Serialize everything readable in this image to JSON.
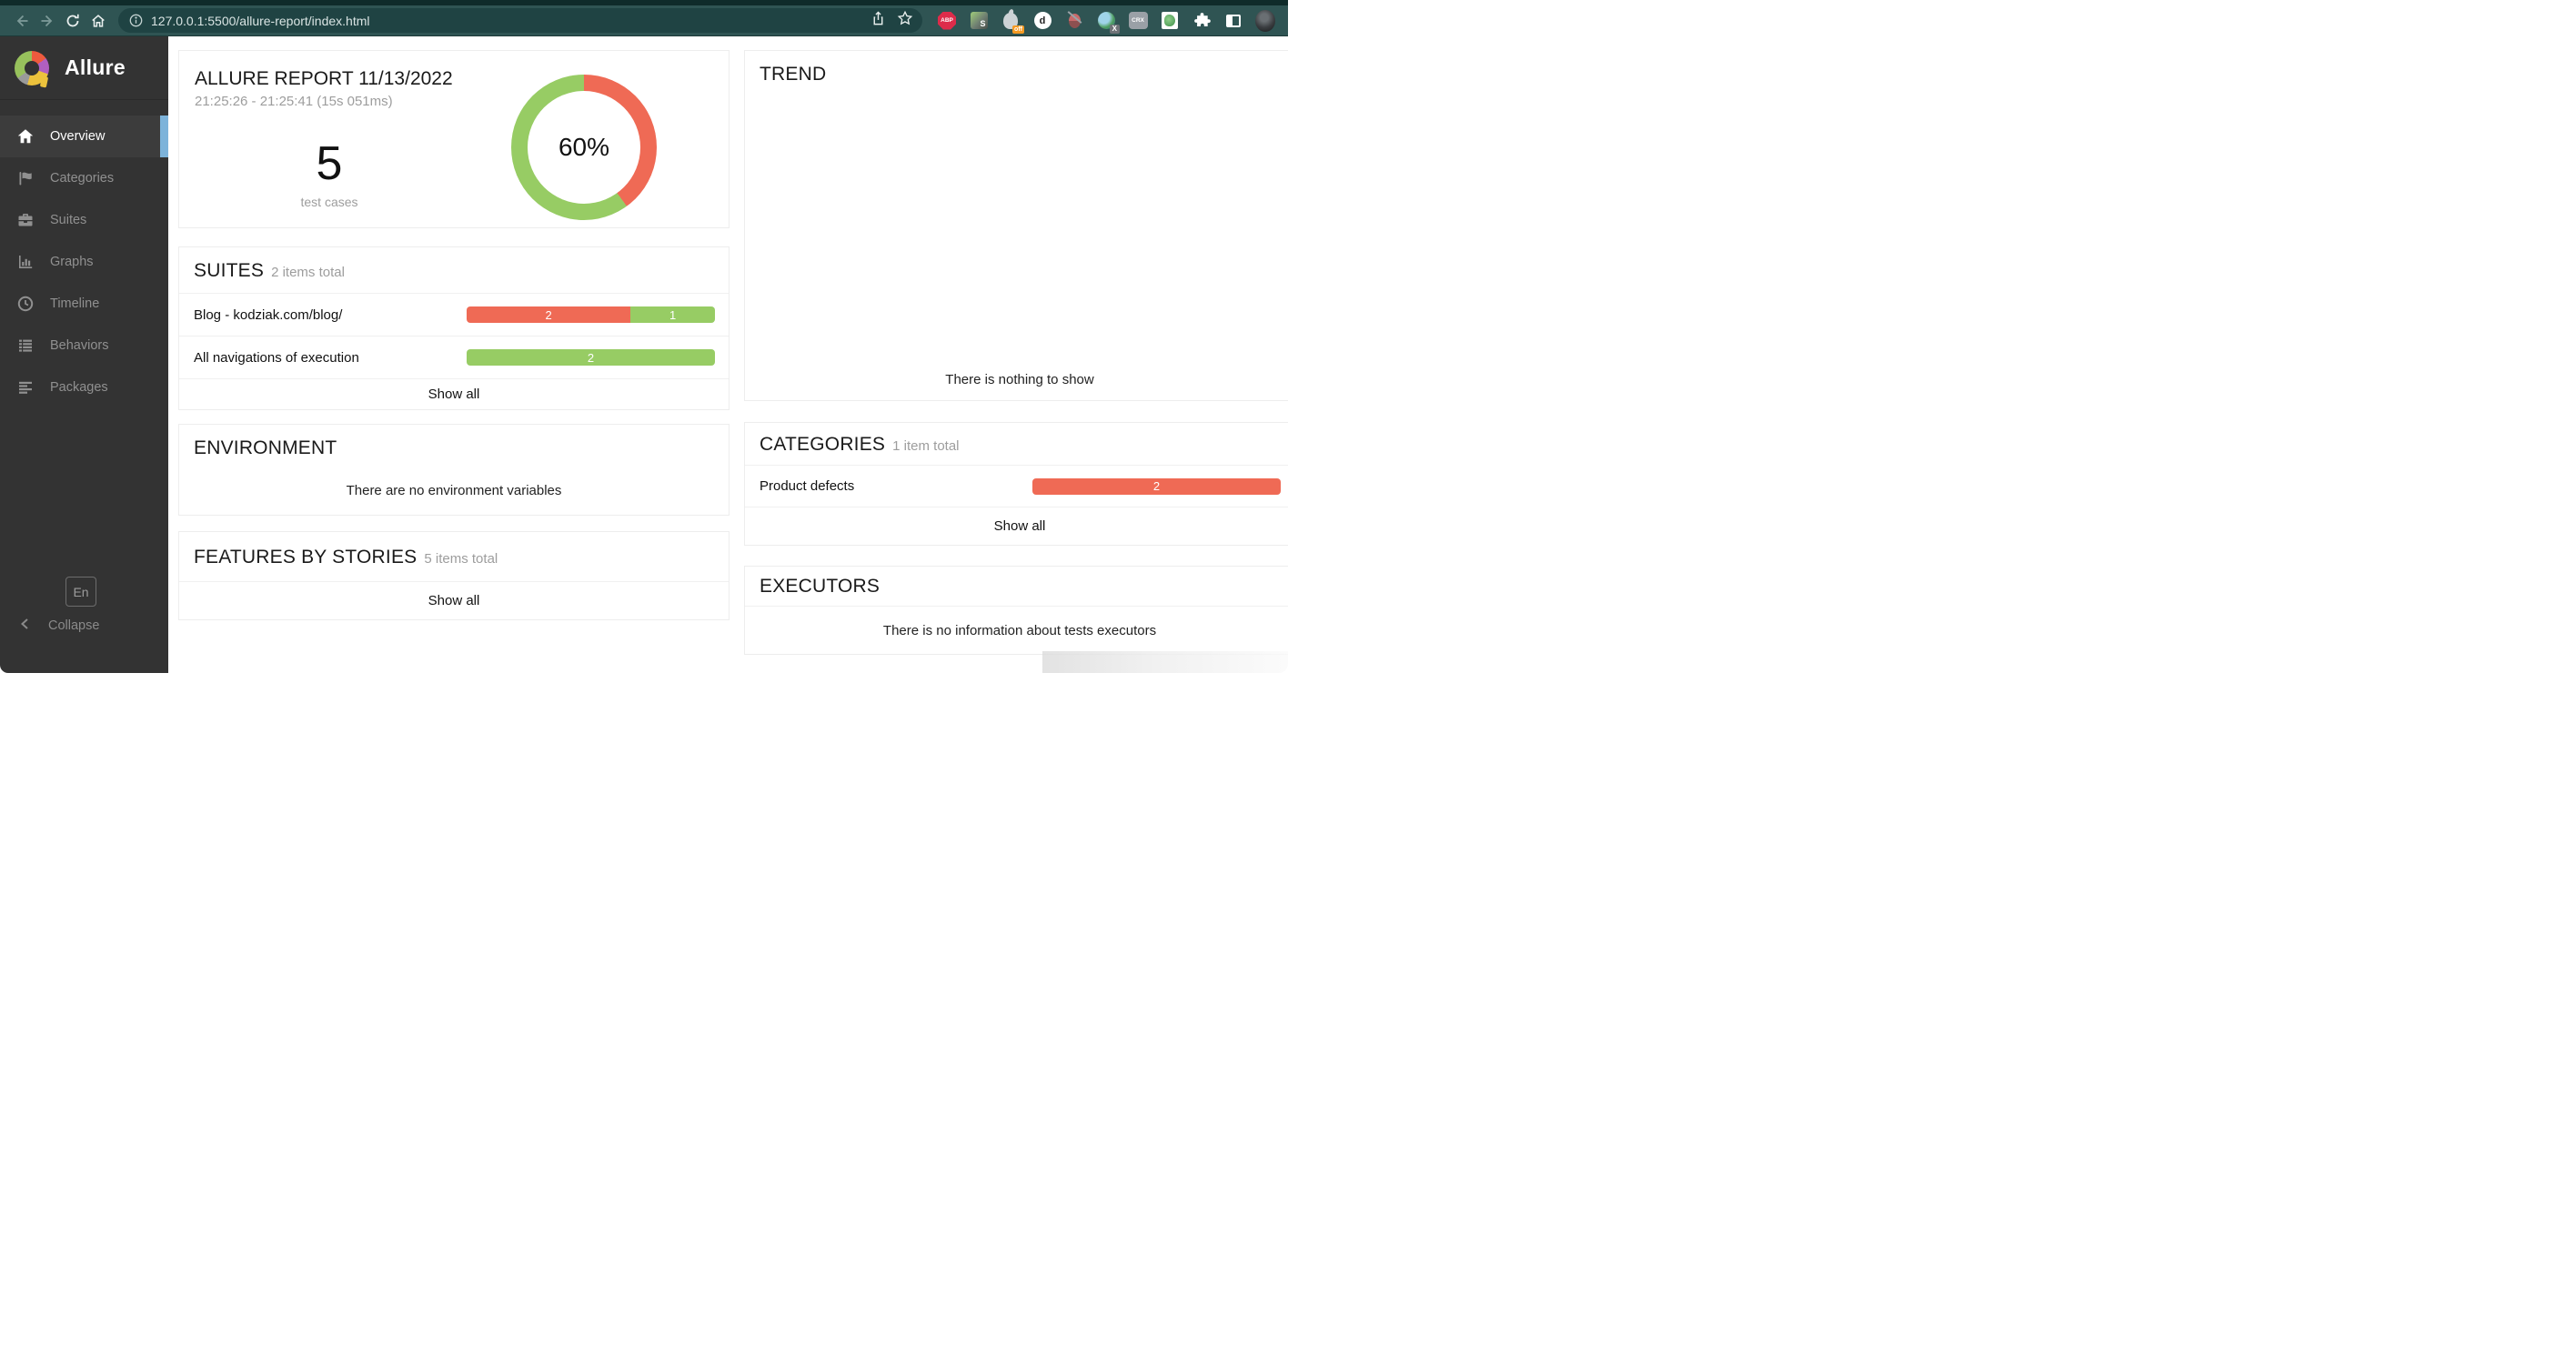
{
  "browser": {
    "url": "127.0.0.1:5500/allure-report/index.html",
    "extensions": {
      "abp_label": "ABP",
      "s_label": "S",
      "flame_badge": "off",
      "d_label": "d",
      "globe_badge": "X",
      "crx_label": "CRX"
    }
  },
  "sidebar": {
    "brand": "Allure",
    "items": [
      {
        "label": "Overview",
        "active": true
      },
      {
        "label": "Categories",
        "active": false
      },
      {
        "label": "Suites",
        "active": false
      },
      {
        "label": "Graphs",
        "active": false
      },
      {
        "label": "Timeline",
        "active": false
      },
      {
        "label": "Behaviors",
        "active": false
      },
      {
        "label": "Packages",
        "active": false
      }
    ],
    "language": "En",
    "collapse_label": "Collapse"
  },
  "overview": {
    "title": "ALLURE REPORT 11/13/2022",
    "subtitle": "21:25:26 - 21:25:41 (15s 051ms)",
    "test_count": "5",
    "test_count_label": "test cases",
    "donut": {
      "percent_label": "60%",
      "failed_pct": 40,
      "passed_pct": 60,
      "failed_color": "#ef6a55",
      "passed_color": "#97cc64"
    }
  },
  "suites": {
    "title": "SUITES",
    "subtitle": "2 items total",
    "rows": [
      {
        "label": "Blog - kodziak.com/blog/",
        "segments": [
          {
            "value": "2",
            "pct": 66,
            "color": "#ef6a55",
            "status": "failed"
          },
          {
            "value": "1",
            "pct": 34,
            "color": "#97cc64",
            "status": "passed"
          }
        ]
      },
      {
        "label": "All navigations of execution",
        "segments": [
          {
            "value": "2",
            "pct": 100,
            "color": "#97cc64",
            "status": "passed"
          }
        ]
      }
    ],
    "show_all": "Show all"
  },
  "environment": {
    "title": "ENVIRONMENT",
    "empty": "There are no environment variables"
  },
  "features": {
    "title": "FEATURES BY STORIES",
    "subtitle": "5 items total",
    "show_all": "Show all"
  },
  "trend": {
    "title": "TREND",
    "empty": "There is nothing to show"
  },
  "categories": {
    "title": "CATEGORIES",
    "subtitle": "1 item total",
    "rows": [
      {
        "label": "Product defects",
        "segments": [
          {
            "value": "2",
            "pct": 100,
            "color": "#ef6a55",
            "status": "failed"
          }
        ]
      }
    ],
    "show_all": "Show all"
  },
  "executors": {
    "title": "EXECUTORS",
    "empty": "There is no information about tests executors"
  }
}
